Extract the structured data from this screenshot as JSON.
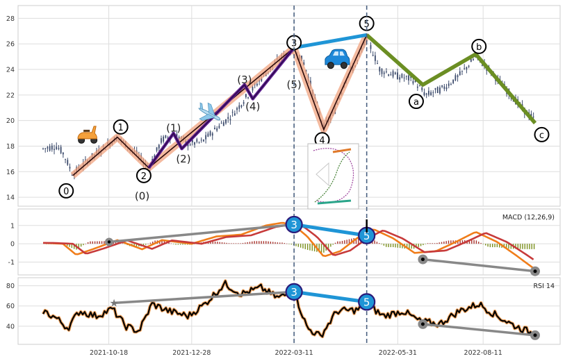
{
  "chart_data": [
    {
      "type": "candlestick",
      "panel": "price",
      "x_ticks": [
        "2021-10-18",
        "2021-12-28",
        "2022-03-11",
        "2022-05-31",
        "2022-08-11"
      ],
      "ylim": [
        13.3,
        29
      ],
      "y_ticks": [
        14,
        16,
        18,
        20,
        22,
        24,
        26,
        28
      ],
      "grid": true,
      "price_path": [
        {
          "t": 0,
          "v": 17.8
        },
        {
          "t": 8,
          "v": 18.0
        },
        {
          "t": 12,
          "v": 17.5
        },
        {
          "t": 18,
          "v": 15.8
        },
        {
          "t": 30,
          "v": 17.2
        },
        {
          "t": 45,
          "v": 18.7
        },
        {
          "t": 55,
          "v": 17.6
        },
        {
          "t": 64,
          "v": 16.3
        },
        {
          "t": 72,
          "v": 18.5
        },
        {
          "t": 80,
          "v": 18.9
        },
        {
          "t": 88,
          "v": 18.2
        },
        {
          "t": 96,
          "v": 18.3
        },
        {
          "t": 106,
          "v": 19.5
        },
        {
          "t": 115,
          "v": 20.5
        },
        {
          "t": 124,
          "v": 22.0
        },
        {
          "t": 134,
          "v": 23.6
        },
        {
          "t": 145,
          "v": 25.0
        },
        {
          "t": 152,
          "v": 25.7
        },
        {
          "t": 158,
          "v": 24.5
        },
        {
          "t": 164,
          "v": 22.0
        },
        {
          "t": 170,
          "v": 19.5
        },
        {
          "t": 176,
          "v": 20.5
        },
        {
          "t": 184,
          "v": 23.5
        },
        {
          "t": 190,
          "v": 24.5
        },
        {
          "t": 196,
          "v": 26.5
        },
        {
          "t": 204,
          "v": 24.0
        },
        {
          "t": 214,
          "v": 23.5
        },
        {
          "t": 224,
          "v": 23.2
        },
        {
          "t": 232,
          "v": 22.0
        },
        {
          "t": 242,
          "v": 22.5
        },
        {
          "t": 252,
          "v": 23.5
        },
        {
          "t": 262,
          "v": 25.0
        },
        {
          "t": 270,
          "v": 24.0
        },
        {
          "t": 280,
          "v": 22.5
        },
        {
          "t": 290,
          "v": 21.0
        },
        {
          "t": 298,
          "v": 20.0
        }
      ],
      "wave_labels": [
        "0",
        "1",
        "2",
        "(0)",
        "(1)",
        "(2)",
        "(3)",
        "(4)",
        "(5)",
        "3",
        "4",
        "5",
        "a",
        "b",
        "c"
      ],
      "waves": {
        "impulse": [
          {
            "t": 18,
            "v": 15.7
          },
          {
            "t": 45,
            "v": 18.7
          },
          {
            "t": 64,
            "v": 16.3
          },
          {
            "t": 152,
            "v": 25.7
          },
          {
            "t": 170,
            "v": 19.3
          },
          {
            "t": 196,
            "v": 26.7
          }
        ],
        "sub_impulse": [
          {
            "t": 64,
            "v": 16.3
          },
          {
            "t": 79,
            "v": 19.0
          },
          {
            "t": 84,
            "v": 17.8
          },
          {
            "t": 122,
            "v": 22.8
          },
          {
            "t": 127,
            "v": 21.7
          },
          {
            "t": 152,
            "v": 25.7
          }
        ],
        "abc": [
          {
            "t": 196,
            "v": 26.7
          },
          {
            "t": 230,
            "v": 22.8
          },
          {
            "t": 262,
            "v": 25.2
          },
          {
            "t": 298,
            "v": 19.8
          }
        ],
        "link": [
          {
            "t": 152,
            "v": 25.7
          },
          {
            "t": 196,
            "v": 26.7
          }
        ]
      },
      "dashed_x": [
        152,
        196
      ]
    },
    {
      "type": "line",
      "panel": "macd",
      "legend": "MACD (12,26,9)",
      "ylim": [
        -1.7,
        1.9
      ],
      "y_ticks": [
        -1,
        0,
        1
      ],
      "macd_path": [
        {
          "t": 0,
          "v": 0.05
        },
        {
          "t": 12,
          "v": 0.0
        },
        {
          "t": 20,
          "v": -0.6
        },
        {
          "t": 30,
          "v": -0.3
        },
        {
          "t": 45,
          "v": 0.2
        },
        {
          "t": 60,
          "v": -0.3
        },
        {
          "t": 72,
          "v": 0.2
        },
        {
          "t": 90,
          "v": 0.0
        },
        {
          "t": 105,
          "v": 0.4
        },
        {
          "t": 120,
          "v": 0.5
        },
        {
          "t": 135,
          "v": 1.0
        },
        {
          "t": 145,
          "v": 1.15
        },
        {
          "t": 152,
          "v": 1.0
        },
        {
          "t": 160,
          "v": 0.4
        },
        {
          "t": 170,
          "v": -0.7
        },
        {
          "t": 180,
          "v": -0.4
        },
        {
          "t": 190,
          "v": 0.3
        },
        {
          "t": 200,
          "v": 0.8
        },
        {
          "t": 212,
          "v": 0.3
        },
        {
          "t": 225,
          "v": -0.5
        },
        {
          "t": 238,
          "v": -0.4
        },
        {
          "t": 250,
          "v": 0.1
        },
        {
          "t": 262,
          "v": 0.65
        },
        {
          "t": 275,
          "v": 0.1
        },
        {
          "t": 286,
          "v": -0.6
        },
        {
          "t": 298,
          "v": -1.4
        }
      ],
      "divergence": {
        "top": [
          {
            "t": 152,
            "v": 1.05,
            "label": "3"
          },
          {
            "t": 196,
            "v": 0.45,
            "label": "5"
          }
        ],
        "bottom": [
          {
            "t": 40,
            "v": 0.1
          },
          {
            "t": 152,
            "v": 1.05
          }
        ],
        "late": [
          {
            "t": 230,
            "v": -0.85
          },
          {
            "t": 298,
            "v": -1.5
          }
        ]
      }
    },
    {
      "type": "line",
      "panel": "rsi",
      "legend": "RSI 14",
      "ylim": [
        22,
        88
      ],
      "y_ticks": [
        40,
        60,
        80
      ],
      "rsi_path": [
        {
          "t": 0,
          "v": 55
        },
        {
          "t": 8,
          "v": 48
        },
        {
          "t": 15,
          "v": 38
        },
        {
          "t": 22,
          "v": 55
        },
        {
          "t": 32,
          "v": 50
        },
        {
          "t": 42,
          "v": 57
        },
        {
          "t": 50,
          "v": 40
        },
        {
          "t": 58,
          "v": 35
        },
        {
          "t": 66,
          "v": 62
        },
        {
          "t": 76,
          "v": 55
        },
        {
          "t": 88,
          "v": 50
        },
        {
          "t": 98,
          "v": 62
        },
        {
          "t": 110,
          "v": 82
        },
        {
          "t": 120,
          "v": 72
        },
        {
          "t": 132,
          "v": 78
        },
        {
          "t": 142,
          "v": 68
        },
        {
          "t": 152,
          "v": 74
        },
        {
          "t": 160,
          "v": 38
        },
        {
          "t": 168,
          "v": 30
        },
        {
          "t": 178,
          "v": 55
        },
        {
          "t": 190,
          "v": 56
        },
        {
          "t": 196,
          "v": 62
        },
        {
          "t": 206,
          "v": 50
        },
        {
          "t": 218,
          "v": 55
        },
        {
          "t": 228,
          "v": 45
        },
        {
          "t": 240,
          "v": 42
        },
        {
          "t": 252,
          "v": 55
        },
        {
          "t": 264,
          "v": 62
        },
        {
          "t": 275,
          "v": 50
        },
        {
          "t": 286,
          "v": 40
        },
        {
          "t": 298,
          "v": 32
        }
      ],
      "divergence": {
        "top": [
          {
            "t": 152,
            "v": 74,
            "label": "3"
          },
          {
            "t": 196,
            "v": 64,
            "label": "5"
          }
        ],
        "bottom": [
          {
            "t": 43,
            "v": 63
          },
          {
            "t": 152,
            "v": 74
          }
        ],
        "late": [
          {
            "t": 230,
            "v": 42
          },
          {
            "t": 298,
            "v": 31
          }
        ]
      }
    }
  ]
}
